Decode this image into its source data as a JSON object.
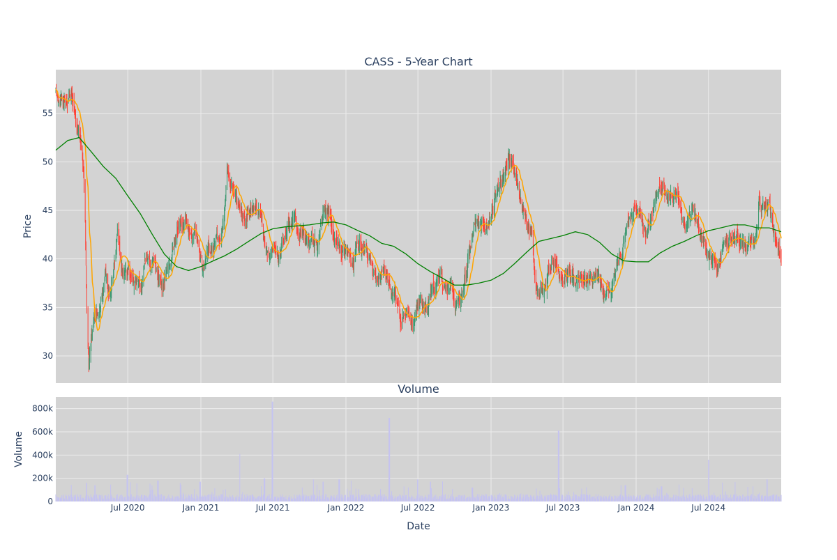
{
  "colors": {
    "plot_bg": "#d3d3d3",
    "grid": "#ececec",
    "up": "#3d9970",
    "down": "#ff4136",
    "ma_short": "#ffa500",
    "ma_long": "#008000",
    "volume": "#c5c3f0"
  },
  "chart_data": [
    {
      "type": "candlestick",
      "title": "CASS - 5-Year Chart",
      "xlabel": "",
      "ylabel": "Price",
      "xlim": [
        "2020-01-02",
        "2024-12-31"
      ],
      "ylim": [
        27.2,
        59.5
      ],
      "y_ticks": [
        30,
        35,
        40,
        45,
        50,
        55
      ],
      "grid": true,
      "series": [
        {
          "name": "",
          "kind": "ohlc"
        },
        {
          "name": "",
          "kind": "moving-average-short"
        },
        {
          "name": "",
          "kind": "moving-average-long"
        }
      ],
      "close_path": [
        [
          "2020-01-02",
          57.5
        ],
        [
          "2020-01-20",
          56.8
        ],
        [
          "2020-02-10",
          57.5
        ],
        [
          "2020-02-25",
          53.5
        ],
        [
          "2020-03-05",
          52.8
        ],
        [
          "2020-03-15",
          46.5
        ],
        [
          "2020-03-20",
          36.0
        ],
        [
          "2020-03-25",
          30.0
        ],
        [
          "2020-04-05",
          33.5
        ],
        [
          "2020-04-15",
          35.0
        ],
        [
          "2020-04-25",
          36.5
        ],
        [
          "2020-05-05",
          39.0
        ],
        [
          "2020-05-15",
          36.5
        ],
        [
          "2020-05-25",
          38.5
        ],
        [
          "2020-06-05",
          42.5
        ],
        [
          "2020-06-15",
          38.5
        ],
        [
          "2020-07-01",
          39.0
        ],
        [
          "2020-07-20",
          37.0
        ],
        [
          "2020-08-05",
          37.5
        ],
        [
          "2020-08-20",
          39.5
        ],
        [
          "2020-09-10",
          39.0
        ],
        [
          "2020-09-25",
          37.5
        ],
        [
          "2020-10-10",
          38.5
        ],
        [
          "2020-10-25",
          42.0
        ],
        [
          "2020-11-10",
          43.0
        ],
        [
          "2020-11-25",
          43.5
        ],
        [
          "2020-12-10",
          42.5
        ],
        [
          "2020-12-25",
          42.0
        ],
        [
          "2021-01-05",
          38.5
        ],
        [
          "2021-01-20",
          40.5
        ],
        [
          "2021-02-05",
          41.5
        ],
        [
          "2021-02-20",
          42.5
        ],
        [
          "2021-03-01",
          44.0
        ],
        [
          "2021-03-08",
          48.0
        ],
        [
          "2021-03-20",
          46.5
        ],
        [
          "2021-04-05",
          46.0
        ],
        [
          "2021-04-25",
          45.0
        ],
        [
          "2021-05-10",
          45.5
        ],
        [
          "2021-05-25",
          46.0
        ],
        [
          "2021-06-10",
          41.5
        ],
        [
          "2021-06-25",
          40.5
        ],
        [
          "2021-07-10",
          41.0
        ],
        [
          "2021-07-25",
          42.0
        ],
        [
          "2021-08-10",
          44.0
        ],
        [
          "2021-08-25",
          44.5
        ],
        [
          "2021-09-10",
          43.0
        ],
        [
          "2021-09-25",
          42.5
        ],
        [
          "2021-10-10",
          42.0
        ],
        [
          "2021-10-25",
          42.5
        ],
        [
          "2021-11-05",
          45.5
        ],
        [
          "2021-11-20",
          44.0
        ],
        [
          "2021-12-05",
          42.0
        ],
        [
          "2021-12-20",
          40.5
        ],
        [
          "2022-01-05",
          40.5
        ],
        [
          "2022-01-20",
          39.5
        ],
        [
          "2022-02-05",
          41.5
        ],
        [
          "2022-02-20",
          41.0
        ],
        [
          "2022-03-05",
          39.5
        ],
        [
          "2022-03-20",
          37.5
        ],
        [
          "2022-04-05",
          38.5
        ],
        [
          "2022-04-20",
          38.0
        ],
        [
          "2022-05-05",
          36.0
        ],
        [
          "2022-05-20",
          33.5
        ],
        [
          "2022-06-05",
          34.0
        ],
        [
          "2022-06-20",
          33.5
        ],
        [
          "2022-07-05",
          34.5
        ],
        [
          "2022-07-20",
          35.5
        ],
        [
          "2022-08-05",
          36.0
        ],
        [
          "2022-08-20",
          38.0
        ],
        [
          "2022-09-05",
          37.0
        ],
        [
          "2022-09-20",
          37.5
        ],
        [
          "2022-10-05",
          35.0
        ],
        [
          "2022-10-20",
          36.0
        ],
        [
          "2022-11-05",
          40.5
        ],
        [
          "2022-11-20",
          43.0
        ],
        [
          "2022-12-05",
          43.5
        ],
        [
          "2022-12-20",
          43.0
        ],
        [
          "2023-01-05",
          45.0
        ],
        [
          "2023-01-20",
          48.0
        ],
        [
          "2023-02-05",
          48.5
        ],
        [
          "2023-02-15",
          51.0
        ],
        [
          "2023-03-01",
          49.0
        ],
        [
          "2023-03-15",
          45.5
        ],
        [
          "2023-04-01",
          43.5
        ],
        [
          "2023-04-15",
          42.0
        ],
        [
          "2023-04-25",
          36.5
        ],
        [
          "2023-05-10",
          37.0
        ],
        [
          "2023-05-25",
          38.5
        ],
        [
          "2023-06-10",
          40.0
        ],
        [
          "2023-06-25",
          39.0
        ],
        [
          "2023-07-10",
          38.5
        ],
        [
          "2023-07-25",
          38.5
        ],
        [
          "2023-08-10",
          38.0
        ],
        [
          "2023-08-25",
          38.5
        ],
        [
          "2023-09-10",
          38.0
        ],
        [
          "2023-09-25",
          38.5
        ],
        [
          "2023-10-10",
          37.0
        ],
        [
          "2023-10-25",
          37.0
        ],
        [
          "2023-11-10",
          39.0
        ],
        [
          "2023-11-25",
          41.5
        ],
        [
          "2023-12-10",
          43.0
        ],
        [
          "2023-12-25",
          45.5
        ],
        [
          "2024-01-10",
          44.0
        ],
        [
          "2024-01-25",
          43.0
        ],
        [
          "2024-02-10",
          43.5
        ],
        [
          "2024-02-25",
          47.5
        ],
        [
          "2024-03-10",
          47.0
        ],
        [
          "2024-03-25",
          46.5
        ],
        [
          "2024-04-10",
          47.5
        ],
        [
          "2024-04-25",
          45.0
        ],
        [
          "2024-05-10",
          44.5
        ],
        [
          "2024-05-25",
          44.5
        ],
        [
          "2024-06-10",
          42.5
        ],
        [
          "2024-06-25",
          41.0
        ],
        [
          "2024-07-10",
          40.0
        ],
        [
          "2024-07-25",
          40.0
        ],
        [
          "2024-08-10",
          41.5
        ],
        [
          "2024-08-25",
          42.0
        ],
        [
          "2024-09-10",
          42.0
        ],
        [
          "2024-09-25",
          41.0
        ],
        [
          "2024-10-10",
          41.0
        ],
        [
          "2024-10-25",
          41.5
        ],
        [
          "2024-11-05",
          46.0
        ],
        [
          "2024-11-20",
          45.0
        ],
        [
          "2024-12-05",
          44.5
        ],
        [
          "2024-12-20",
          41.5
        ],
        [
          "2024-12-31",
          40.5
        ]
      ],
      "ma_long_path": [
        [
          "2020-01-02",
          51.2
        ],
        [
          "2020-02-01",
          52.2
        ],
        [
          "2020-03-01",
          52.5
        ],
        [
          "2020-04-01",
          51.0
        ],
        [
          "2020-05-01",
          49.5
        ],
        [
          "2020-06-01",
          48.3
        ],
        [
          "2020-07-01",
          46.5
        ],
        [
          "2020-08-01",
          44.7
        ],
        [
          "2020-09-01",
          42.5
        ],
        [
          "2020-10-01",
          40.5
        ],
        [
          "2020-11-01",
          39.2
        ],
        [
          "2020-12-01",
          38.8
        ],
        [
          "2021-01-01",
          39.2
        ],
        [
          "2021-02-01",
          39.8
        ],
        [
          "2021-03-01",
          40.3
        ],
        [
          "2021-04-01",
          41.0
        ],
        [
          "2021-05-01",
          41.8
        ],
        [
          "2021-06-01",
          42.6
        ],
        [
          "2021-07-01",
          43.1
        ],
        [
          "2021-08-01",
          43.3
        ],
        [
          "2021-09-01",
          43.4
        ],
        [
          "2021-10-01",
          43.5
        ],
        [
          "2021-11-01",
          43.7
        ],
        [
          "2021-12-01",
          43.8
        ],
        [
          "2022-01-01",
          43.5
        ],
        [
          "2022-02-01",
          42.9
        ],
        [
          "2022-03-01",
          42.4
        ],
        [
          "2022-04-01",
          41.6
        ],
        [
          "2022-05-01",
          41.3
        ],
        [
          "2022-06-01",
          40.5
        ],
        [
          "2022-07-01",
          39.5
        ],
        [
          "2022-08-01",
          38.7
        ],
        [
          "2022-09-01",
          38.0
        ],
        [
          "2022-10-01",
          37.3
        ],
        [
          "2022-11-01",
          37.3
        ],
        [
          "2022-12-01",
          37.5
        ],
        [
          "2023-01-01",
          37.8
        ],
        [
          "2023-02-01",
          38.5
        ],
        [
          "2023-03-01",
          39.5
        ],
        [
          "2023-04-01",
          40.7
        ],
        [
          "2023-05-01",
          41.8
        ],
        [
          "2023-06-01",
          42.1
        ],
        [
          "2023-07-01",
          42.4
        ],
        [
          "2023-08-01",
          42.8
        ],
        [
          "2023-09-01",
          42.5
        ],
        [
          "2023-10-01",
          41.7
        ],
        [
          "2023-11-01",
          40.5
        ],
        [
          "2023-12-01",
          39.8
        ],
        [
          "2024-01-01",
          39.7
        ],
        [
          "2024-02-01",
          39.7
        ],
        [
          "2024-03-01",
          40.6
        ],
        [
          "2024-04-01",
          41.3
        ],
        [
          "2024-05-01",
          41.8
        ],
        [
          "2024-06-01",
          42.4
        ],
        [
          "2024-07-01",
          42.9
        ],
        [
          "2024-08-01",
          43.2
        ],
        [
          "2024-09-01",
          43.5
        ],
        [
          "2024-10-01",
          43.5
        ],
        [
          "2024-11-01",
          43.2
        ],
        [
          "2024-12-01",
          43.2
        ],
        [
          "2024-12-31",
          42.8
        ]
      ]
    },
    {
      "type": "bar",
      "title": "Volume",
      "xlabel": "Date",
      "ylabel": "Volume",
      "ylim": [
        0,
        900000
      ],
      "y_ticks": [
        0,
        200000,
        400000,
        600000,
        800000
      ],
      "y_tick_labels": [
        "0",
        "200k",
        "400k",
        "600k",
        "800k"
      ],
      "x_ticks": [
        "2020-07-01",
        "2021-01-01",
        "2021-07-01",
        "2022-01-01",
        "2022-07-01",
        "2023-01-01",
        "2023-07-01",
        "2024-01-01",
        "2024-07-01"
      ],
      "x_tick_labels": [
        "Jul 2020",
        "Jan 2021",
        "Jul 2021",
        "Jan 2022",
        "Jul 2022",
        "Jan 2023",
        "Jul 2023",
        "Jan 2024",
        "Jul 2024"
      ],
      "grid": true,
      "typical_volume": 40000,
      "spikes": [
        [
          "2020-03-20",
          160000
        ],
        [
          "2020-04-10",
          140000
        ],
        [
          "2020-06-30",
          230000
        ],
        [
          "2020-09-15",
          180000
        ],
        [
          "2020-12-30",
          170000
        ],
        [
          "2021-04-10",
          410000
        ],
        [
          "2021-06-10",
          200000
        ],
        [
          "2021-06-30",
          860000
        ],
        [
          "2021-10-10",
          190000
        ],
        [
          "2021-11-05",
          170000
        ],
        [
          "2021-12-15",
          190000
        ],
        [
          "2022-04-20",
          720000
        ],
        [
          "2022-07-01",
          190000
        ],
        [
          "2022-08-01",
          170000
        ],
        [
          "2022-11-15",
          120000
        ],
        [
          "2023-06-20",
          610000
        ],
        [
          "2023-12-05",
          140000
        ],
        [
          "2024-03-05",
          130000
        ],
        [
          "2024-07-01",
          360000
        ],
        [
          "2024-10-20",
          130000
        ],
        [
          "2024-11-25",
          190000
        ]
      ]
    }
  ]
}
